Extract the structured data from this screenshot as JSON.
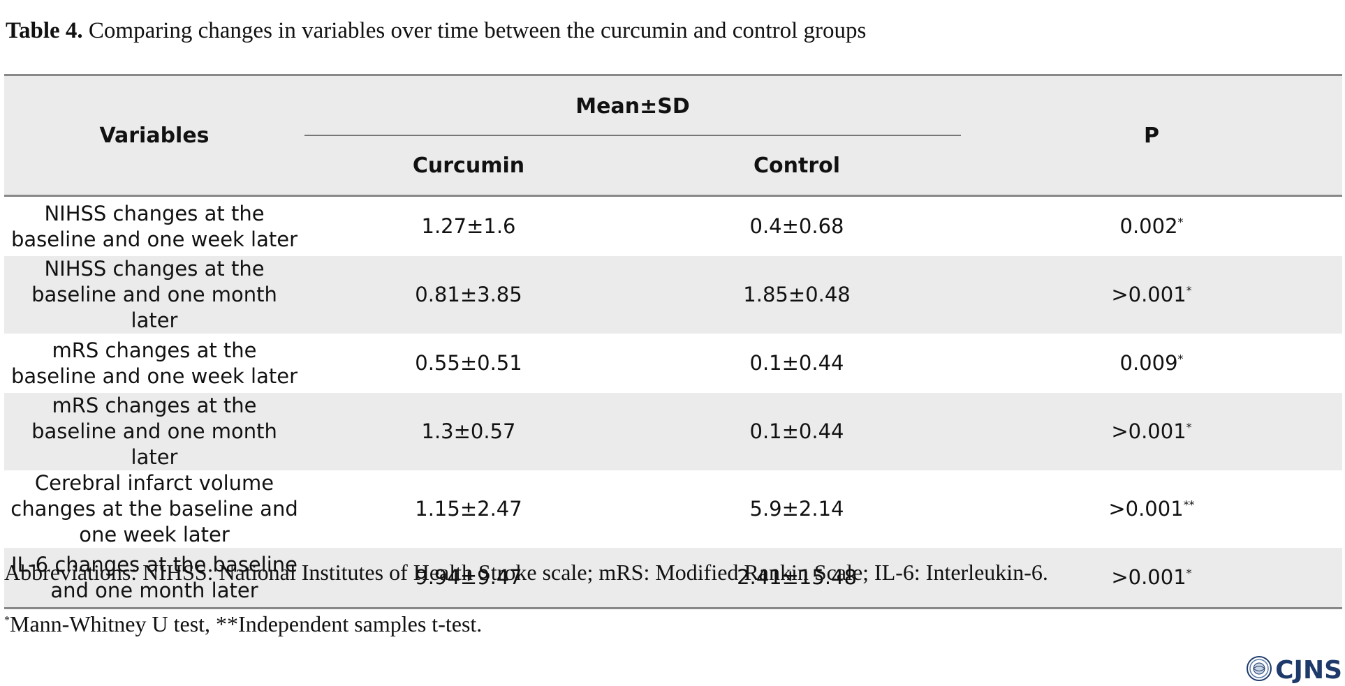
{
  "caption": {
    "label": "Table 4.",
    "text": " Comparing changes in variables over time between the curcumin and control groups"
  },
  "table": {
    "header": {
      "variables": "Variables",
      "group_header": "Mean±SD",
      "curcumin": "Curcumin",
      "control": "Control",
      "p": "P"
    },
    "rows": [
      {
        "variable": "NIHSS changes at the baseline and one week later",
        "curcumin": "1.27±1.6",
        "control": "0.4±0.68",
        "p": "0.002",
        "mark": "*"
      },
      {
        "variable": "NIHSS changes at the baseline and one month later",
        "curcumin": "0.81±3.85",
        "control": "1.85±0.48",
        "p": ">0.001",
        "mark": "*"
      },
      {
        "variable": "mRS changes at the baseline and one week later",
        "curcumin": "0.55±0.51",
        "control": "0.1±0.44",
        "p": "0.009",
        "mark": "*"
      },
      {
        "variable": "mRS changes at the baseline and one month later",
        "curcumin": "1.3±0.57",
        "control": "0.1±0.44",
        "p": ">0.001",
        "mark": "*"
      },
      {
        "variable": "Cerebral infarct volume changes at the baseline and one week later",
        "curcumin": "1.15±2.47",
        "control": "5.9±2.14",
        "p": ">0.001",
        "mark": "**"
      },
      {
        "variable": "IL-6 changes at the baseline and one month later",
        "curcumin": "9.94±9.47",
        "control": "2.41±15.48",
        "p": ">0.001",
        "mark": "*"
      }
    ]
  },
  "abbreviations": "Abbreviations: NIHSS: National Institutes of Health Stroke scale; mRS: Modified Rankin Scale; IL-6: Interleukin-6.",
  "note": {
    "mark": "*",
    "text": "Mann-Whitney U test, **Independent samples t-test."
  },
  "logo": {
    "text": "CJNS",
    "icon": "seal-icon",
    "color": "#1e3a6b"
  }
}
